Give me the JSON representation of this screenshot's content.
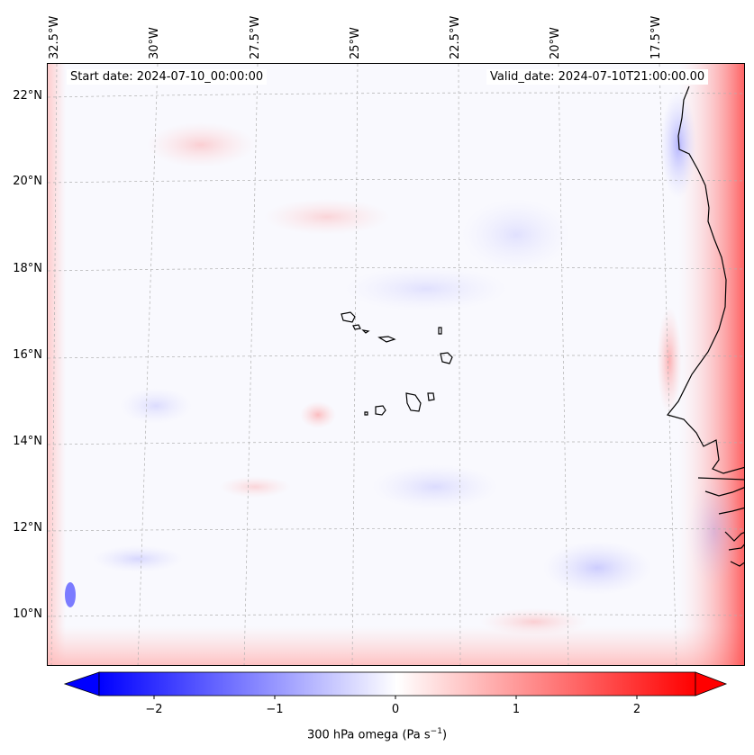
{
  "header": {
    "start_date": "Start date: 2024-07-10_00:00:00",
    "valid_date": "Valid_date: 2024-07-10T21:00:00.00"
  },
  "axes": {
    "lat_ticks": [
      "22°N",
      "20°N",
      "18°N",
      "16°N",
      "14°N",
      "12°N",
      "10°N"
    ],
    "lon_ticks": [
      "32.5°W",
      "30°W",
      "27.5°W",
      "25°W",
      "22.5°W",
      "20°W",
      "17.5°W"
    ]
  },
  "colorbar": {
    "ticks": [
      "−2",
      "−1",
      "0",
      "1",
      "2"
    ],
    "label_main": "300 hPa omega (Pa s",
    "label_exp": "−1",
    "label_close": ")",
    "min": -2.6,
    "max": 2.6,
    "neg_color": "#0000ff",
    "pos_color": "#ff0000"
  },
  "colors": {
    "coast": "#000000",
    "grid": "#b0b0b0",
    "background": "#f9f9fe"
  }
}
